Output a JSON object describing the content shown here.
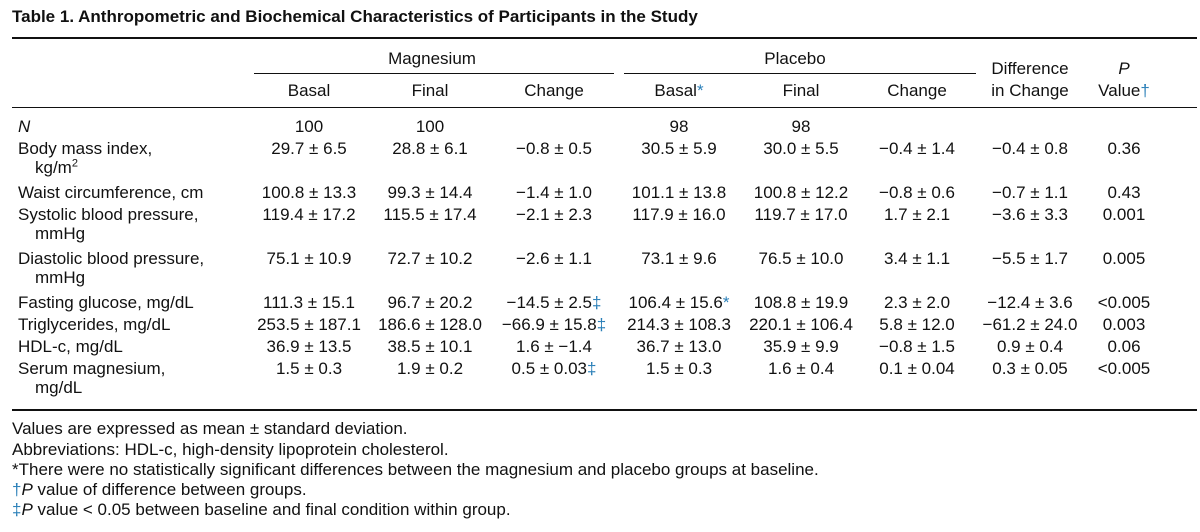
{
  "title": "Table 1.  Anthropometric and Biochemical Characteristics of Participants in the Study",
  "header": {
    "magnesium": "Magnesium",
    "placebo": "Placebo",
    "basal": "Basal",
    "final": "Final",
    "change": "Change",
    "placebo_basal_mark": "*",
    "difference_l1": "Difference",
    "difference_l2": "in Change",
    "p_l1": "P",
    "p_l2": "Value",
    "p_mark": "†"
  },
  "rows": [
    {
      "label": "N",
      "label_italic": true,
      "cont": "",
      "cont_sup": "",
      "mb": "100",
      "mf": "100",
      "mc": "",
      "mc_mark": "",
      "pb": "98",
      "pb_mark": "",
      "pf": "98",
      "pc": "",
      "diff": "",
      "p": ""
    },
    {
      "label": "Body mass index,",
      "cont": "kg/m",
      "cont_sup": "2",
      "mb": "29.7 ± 6.5",
      "mf": "28.8 ± 6.1",
      "mc": "−0.8 ± 0.5",
      "mc_mark": "",
      "pb": "30.5 ± 5.9",
      "pb_mark": "",
      "pf": "30.0 ± 5.5",
      "pc": "−0.4 ± 1.4",
      "diff": "−0.4 ± 0.8",
      "p": "0.36"
    },
    {
      "label": "Waist circumference, cm",
      "cont": "",
      "cont_sup": "",
      "mb": "100.8 ± 13.3",
      "mf": "99.3 ± 14.4",
      "mc": "−1.4 ± 1.0",
      "mc_mark": "",
      "pb": "101.1 ± 13.8",
      "pb_mark": "",
      "pf": "100.8 ± 12.2",
      "pc": "−0.8 ± 0.6",
      "diff": "−0.7 ± 1.1",
      "p": "0.43"
    },
    {
      "label": "Systolic blood pressure,",
      "cont": "mmHg",
      "cont_sup": "",
      "mb": "119.4 ± 17.2",
      "mf": "115.5 ± 17.4",
      "mc": "−2.1 ± 2.3",
      "mc_mark": "",
      "pb": "117.9 ± 16.0",
      "pb_mark": "",
      "pf": "119.7 ± 17.0",
      "pc": "1.7 ± 2.1",
      "diff": "−3.6 ± 3.3",
      "p": "0.001"
    },
    {
      "label": "Diastolic blood pressure,",
      "cont": "mmHg",
      "cont_sup": "",
      "mb": "75.1 ± 10.9",
      "mf": "72.7 ± 10.2",
      "mc": "−2.6 ± 1.1",
      "mc_mark": "",
      "pb": "73.1 ± 9.6",
      "pb_mark": "",
      "pf": "76.5 ± 10.0",
      "pc": "3.4 ± 1.1",
      "diff": "−5.5 ± 1.7",
      "p": "0.005"
    },
    {
      "label": "Fasting glucose, mg/dL",
      "cont": "",
      "cont_sup": "",
      "mb": "111.3 ± 15.1",
      "mf": "96.7 ± 20.2",
      "mc": "−14.5 ± 2.5",
      "mc_mark": "‡",
      "pb": "106.4 ± 15.6",
      "pb_mark": "*",
      "pf": "108.8 ± 19.9",
      "pc": "2.3 ± 2.0",
      "diff": "−12.4 ± 3.6",
      "p": "<0.005"
    },
    {
      "label": "Triglycerides, mg/dL",
      "cont": "",
      "cont_sup": "",
      "mb": "253.5 ± 187.1",
      "mf": "186.6 ± 128.0",
      "mc": "−66.9 ± 15.8",
      "mc_mark": "‡",
      "pb": "214.3 ± 108.3",
      "pb_mark": "",
      "pf": "220.1 ± 106.4",
      "pc": "5.8 ± 12.0",
      "diff": "−61.2 ± 24.0",
      "p": "0.003"
    },
    {
      "label": "HDL-c, mg/dL",
      "cont": "",
      "cont_sup": "",
      "mb": "36.9 ± 13.5",
      "mf": "38.5 ± 10.1",
      "mc": "1.6 ± −1.4",
      "mc_mark": "",
      "pb": "36.7 ± 13.0",
      "pb_mark": "",
      "pf": "35.9 ± 9.9",
      "pc": "−0.8 ± 1.5",
      "diff": "0.9 ± 0.4",
      "p": "0.06"
    },
    {
      "label": "Serum magnesium,",
      "cont": "mg/dL",
      "cont_sup": "",
      "mb": "1.5 ± 0.3",
      "mf": "1.9 ± 0.2",
      "mc": "0.5 ± 0.03",
      "mc_mark": "‡",
      "pb": "1.5 ± 0.3",
      "pb_mark": "",
      "pf": "1.6 ± 0.4",
      "pc": "0.1 ± 0.04",
      "diff": "0.3 ± 0.05",
      "p": "<0.005"
    }
  ],
  "footnotes": {
    "f1": "Values are expressed as mean ± standard deviation.",
    "f2": "Abbreviations: HDL-c, high-density lipoprotein cholesterol.",
    "f3": "*There were no statistically significant differences between the magnesium and placebo groups at baseline.",
    "f4_mark": "†",
    "f4_p": "P",
    "f4_text": " value of difference between groups.",
    "f5_mark": "‡",
    "f5_p": "P",
    "f5_text": " value < 0.05 between baseline and final condition within group."
  },
  "colors": {
    "mark_blue": "#2a7fb8",
    "text": "#111111"
  }
}
